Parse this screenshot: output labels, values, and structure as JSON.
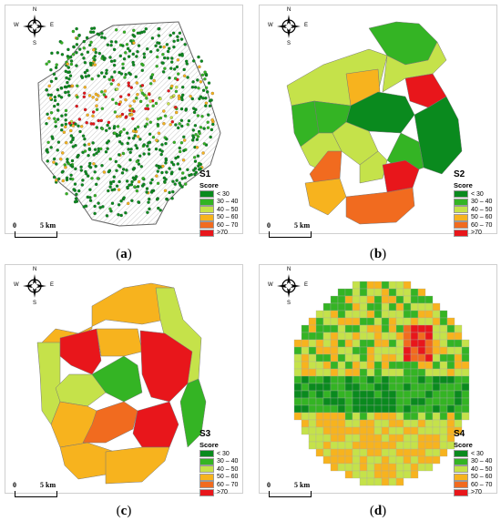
{
  "panels": [
    {
      "id": "a",
      "caption": "a",
      "label": "S1"
    },
    {
      "id": "b",
      "caption": "b",
      "label": "S2"
    },
    {
      "id": "c",
      "caption": "c",
      "label": "S3"
    },
    {
      "id": "d",
      "caption": "d",
      "label": "S4"
    }
  ],
  "legend": {
    "heading": "Score",
    "classes": [
      {
        "label": "< 30",
        "color": "#0a8a1e"
      },
      {
        "label": "30 – 40",
        "color": "#34b424"
      },
      {
        "label": "40 – 50",
        "color": "#c5e24a"
      },
      {
        "label": "50 – 60",
        "color": "#f7b31e"
      },
      {
        "label": "60 – 70",
        "color": "#f16b1f"
      },
      {
        "label": ">70",
        "color": "#e8161b"
      }
    ]
  },
  "scalebar": {
    "start": "0",
    "end": "5 km"
  },
  "compass": {
    "n": "N",
    "e": "E",
    "s": "S",
    "w": "W"
  }
}
